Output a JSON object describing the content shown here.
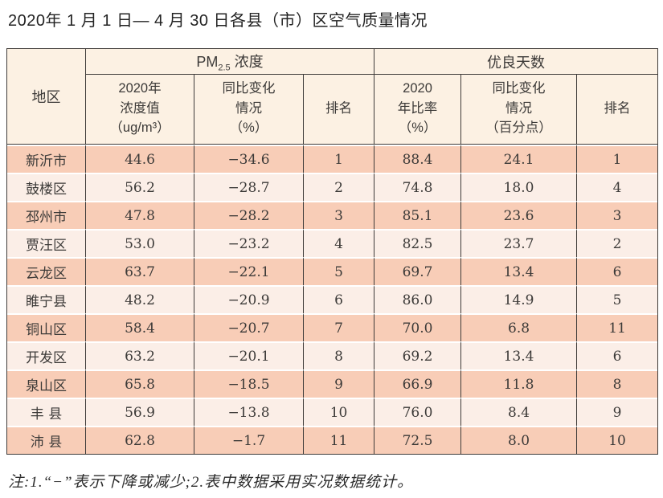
{
  "page": {
    "title": "2020年 1 月 1 日— 4 月 30 日各县（市）区空气质量情况",
    "note": "注:1.“−”表示下降或减少;2.表中数据采用实况数据统计。"
  },
  "chart_data": {
    "type": "table",
    "title": "2020年1月1日—4月30日各县（市）区空气质量情况",
    "header": {
      "region": "地区",
      "pm_group": {
        "prefix": "PM",
        "sub": "2.5",
        "suffix": " 浓度",
        "full": "PM2.5浓度"
      },
      "good_days_group": "优良天数",
      "sub": [
        "2020年\n浓度值\n（ug/m³）",
        "同比变化\n情况\n（%）",
        "排名",
        "2020\n年比率\n（%）",
        "同比变化\n情况\n（百分点）",
        "排名"
      ]
    },
    "columns": [
      "地区",
      "PM2.5浓度 2020年浓度值（ug/m³）",
      "PM2.5浓度 同比变化情况（%）",
      "PM2.5浓度 排名",
      "优良天数 2020年比率（%）",
      "优良天数 同比变化情况（百分点）",
      "优良天数 排名"
    ],
    "rows": [
      [
        "新沂市",
        "44.6",
        "−34.6",
        "1",
        "88.4",
        "24.1",
        "1"
      ],
      [
        "鼓楼区",
        "56.2",
        "−28.7",
        "2",
        "74.8",
        "18.0",
        "4"
      ],
      [
        "邳州市",
        "47.8",
        "−28.2",
        "3",
        "85.1",
        "23.6",
        "3"
      ],
      [
        "贾汪区",
        "53.0",
        "−23.2",
        "4",
        "82.5",
        "23.7",
        "2"
      ],
      [
        "云龙区",
        "63.7",
        "−22.1",
        "5",
        "69.7",
        "13.4",
        "6"
      ],
      [
        "睢宁县",
        "48.2",
        "−20.9",
        "6",
        "86.0",
        "14.9",
        "5"
      ],
      [
        "铜山区",
        "58.4",
        "−20.7",
        "7",
        "70.0",
        "6.8",
        "11"
      ],
      [
        "开发区",
        "63.2",
        "−20.1",
        "8",
        "69.2",
        "13.4",
        "6"
      ],
      [
        "泉山区",
        "65.8",
        "−18.5",
        "9",
        "66.9",
        "11.8",
        "8"
      ],
      [
        "丰 县",
        "56.9",
        "−13.8",
        "10",
        "76.0",
        "8.4",
        "9"
      ],
      [
        "沛 县",
        "62.8",
        "−1.7",
        "11",
        "72.5",
        "8.0",
        "10"
      ]
    ]
  },
  "colors": {
    "row_dark": "#f8cdb7",
    "row_light": "#fbeee7",
    "header_bg": "#fcf1e3",
    "border": "#3f3c3a",
    "text": "#3c3a38"
  }
}
